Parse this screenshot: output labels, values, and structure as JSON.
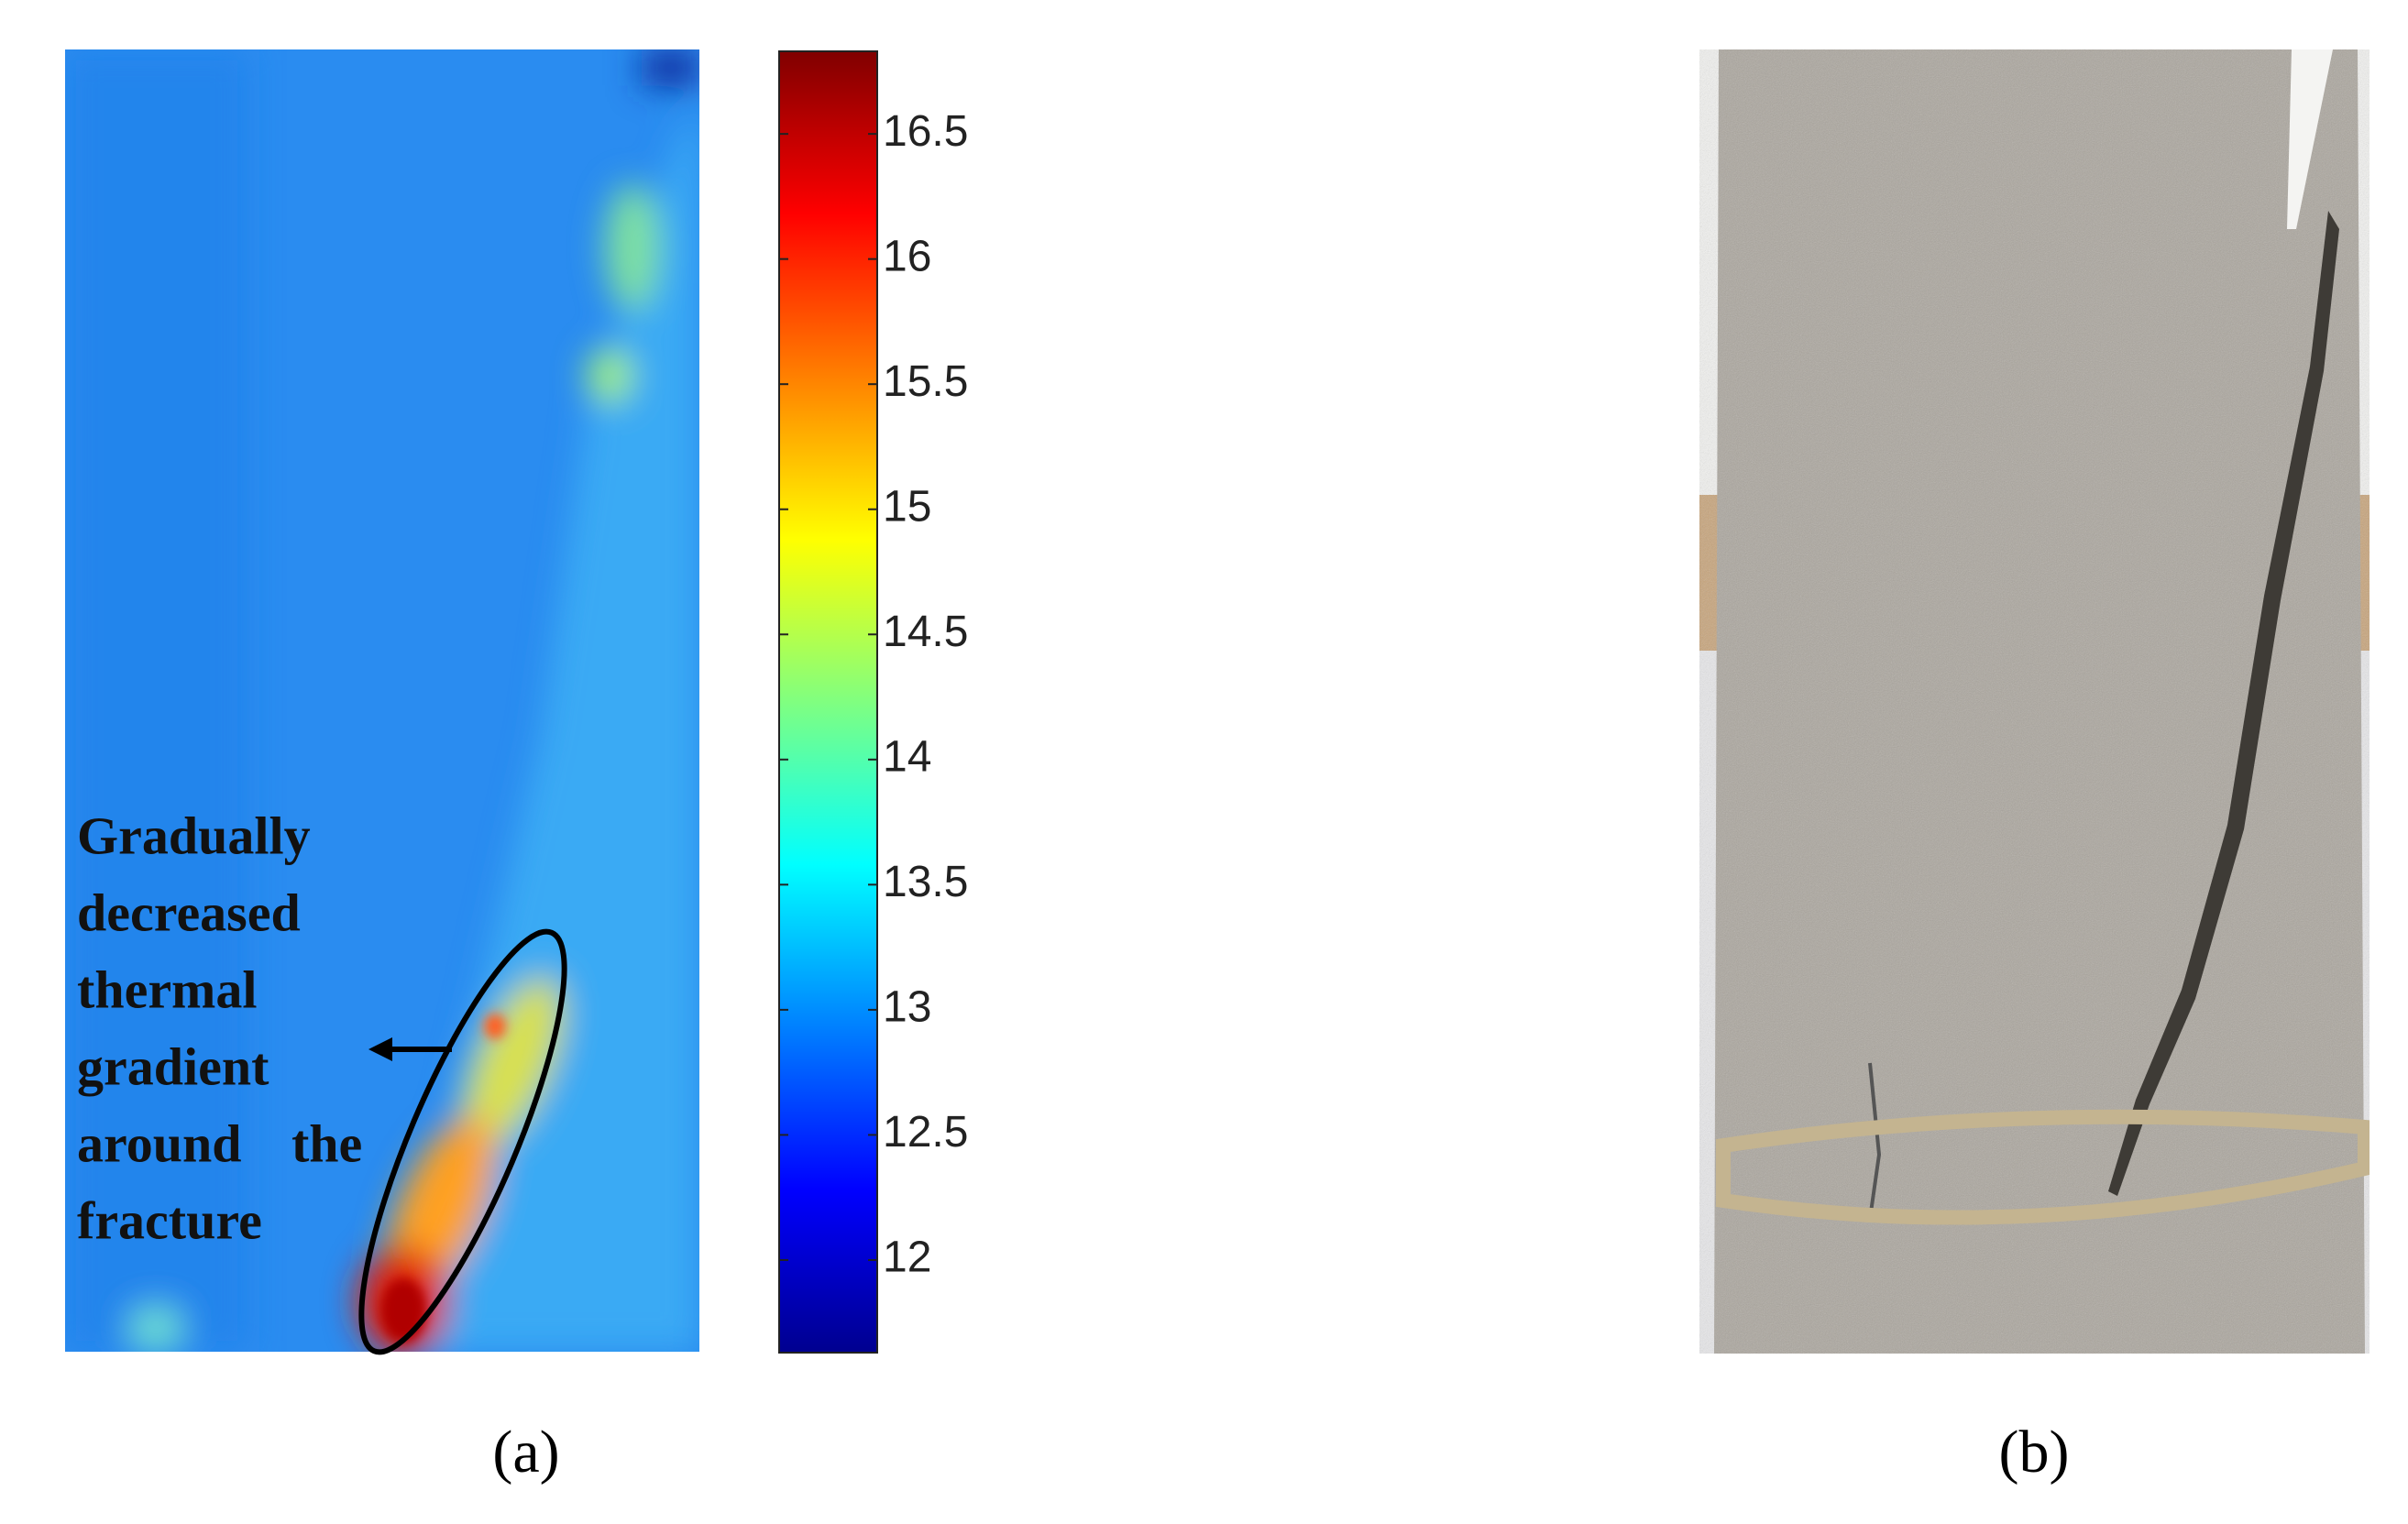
{
  "panel_a": {
    "annotation": [
      "Gradually",
      "decreased",
      "thermal",
      "gradient",
      "around the",
      "fracture"
    ],
    "label": "(a)",
    "colorbar": {
      "lim": [
        11.63,
        16.83
      ],
      "ticks": [
        12,
        12.5,
        13,
        13.5,
        14,
        14.5,
        15,
        15.5,
        16,
        16.5
      ],
      "colormap": [
        "#00008f",
        "#0000ff",
        "#0080ff",
        "#00ffff",
        "#80ff80",
        "#ffff00",
        "#ff8000",
        "#ff0000",
        "#800000"
      ]
    }
  },
  "panel_b": {
    "label": "(b)"
  }
}
